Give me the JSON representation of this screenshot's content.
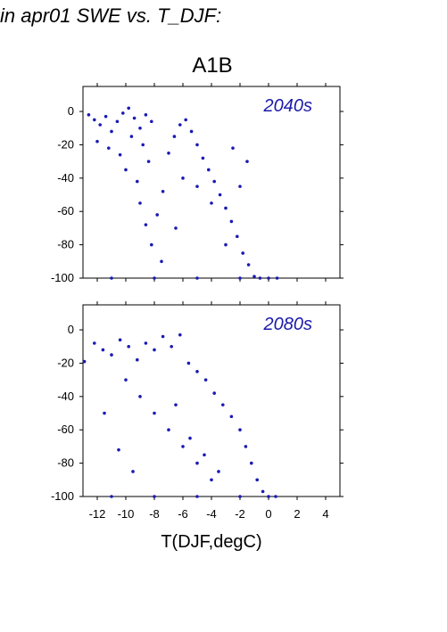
{
  "figure": {
    "header": "in apr01 SWE vs. T_DJF:",
    "scenario_title": "A1B",
    "point_color": "#1a1ab4",
    "label_color": "#1a1aaa"
  },
  "chart_data": [
    {
      "type": "scatter",
      "title": "A1B",
      "annotation": "2040s",
      "xlabel": "T(DJF,degC)",
      "ylabel": "",
      "xlim": [
        -13,
        5
      ],
      "ylim": [
        -100,
        15
      ],
      "xticks": [
        -12,
        -10,
        -8,
        -6,
        -4,
        -2,
        0,
        2,
        4
      ],
      "yticks": [
        0,
        -20,
        -40,
        -60,
        -80,
        -100
      ],
      "grid": false,
      "series": [
        {
          "points": [
            [
              -12.6,
              -2
            ],
            [
              -12.2,
              -5
            ],
            [
              -11.8,
              -8
            ],
            [
              -11.4,
              -3
            ],
            [
              -11.0,
              -12
            ],
            [
              -10.6,
              -6
            ],
            [
              -10.2,
              -1
            ],
            [
              -9.8,
              2
            ],
            [
              -9.4,
              -4
            ],
            [
              -9.0,
              -10
            ],
            [
              -8.6,
              -2
            ],
            [
              -8.2,
              -6
            ],
            [
              -12.0,
              -18
            ],
            [
              -11.2,
              -22
            ],
            [
              -10.4,
              -26
            ],
            [
              -9.6,
              -15
            ],
            [
              -8.8,
              -20
            ],
            [
              -10.0,
              -35
            ],
            [
              -9.2,
              -42
            ],
            [
              -8.4,
              -30
            ],
            [
              -9.0,
              -55
            ],
            [
              -8.6,
              -68
            ],
            [
              -8.2,
              -80
            ],
            [
              -7.8,
              -62
            ],
            [
              -7.4,
              -48
            ],
            [
              -7.0,
              -25
            ],
            [
              -6.6,
              -15
            ],
            [
              -6.2,
              -8
            ],
            [
              -5.8,
              -5
            ],
            [
              -5.4,
              -12
            ],
            [
              -5.0,
              -20
            ],
            [
              -4.6,
              -28
            ],
            [
              -4.2,
              -35
            ],
            [
              -3.8,
              -42
            ],
            [
              -3.4,
              -50
            ],
            [
              -3.0,
              -58
            ],
            [
              -2.6,
              -66
            ],
            [
              -2.2,
              -75
            ],
            [
              -1.8,
              -85
            ],
            [
              -1.4,
              -92
            ],
            [
              -1.0,
              -99
            ],
            [
              -0.6,
              -100
            ],
            [
              0.0,
              -100
            ],
            [
              0.6,
              -100
            ],
            [
              -11.0,
              -100
            ],
            [
              -8.0,
              -100
            ],
            [
              -5.0,
              -100
            ],
            [
              -2.0,
              -100
            ],
            [
              -6.0,
              -40
            ],
            [
              -5.0,
              -45
            ],
            [
              -4.0,
              -55
            ],
            [
              -6.5,
              -70
            ],
            [
              -7.5,
              -90
            ],
            [
              -3.0,
              -80
            ],
            [
              -2.0,
              -45
            ],
            [
              -1.5,
              -30
            ],
            [
              -2.5,
              -22
            ]
          ]
        }
      ]
    },
    {
      "type": "scatter",
      "annotation": "2080s",
      "xlabel": "T(DJF,degC)",
      "ylabel": "",
      "xlim": [
        -13,
        5
      ],
      "ylim": [
        -100,
        15
      ],
      "xticks": [
        -12,
        -10,
        -8,
        -6,
        -4,
        -2,
        0,
        2,
        4
      ],
      "yticks": [
        0,
        -20,
        -40,
        -60,
        -80,
        -100
      ],
      "grid": false,
      "series": [
        {
          "points": [
            [
              -12.9,
              -19
            ],
            [
              -12.2,
              -8
            ],
            [
              -11.6,
              -12
            ],
            [
              -11.0,
              -15
            ],
            [
              -10.4,
              -6
            ],
            [
              -9.8,
              -10
            ],
            [
              -9.2,
              -18
            ],
            [
              -8.6,
              -8
            ],
            [
              -8.0,
              -12
            ],
            [
              -7.4,
              -4
            ],
            [
              -6.8,
              -10
            ],
            [
              -6.2,
              -3
            ],
            [
              -5.6,
              -20
            ],
            [
              -5.0,
              -25
            ],
            [
              -4.4,
              -30
            ],
            [
              -3.8,
              -38
            ],
            [
              -3.2,
              -45
            ],
            [
              -2.6,
              -52
            ],
            [
              -2.0,
              -60
            ],
            [
              -1.6,
              -70
            ],
            [
              -1.2,
              -80
            ],
            [
              -0.8,
              -90
            ],
            [
              -0.4,
              -97
            ],
            [
              0.0,
              -100
            ],
            [
              0.5,
              -100
            ],
            [
              -11.0,
              -100
            ],
            [
              -8.0,
              -100
            ],
            [
              -5.0,
              -100
            ],
            [
              -2.0,
              -100
            ],
            [
              -10.0,
              -30
            ],
            [
              -9.0,
              -40
            ],
            [
              -8.0,
              -50
            ],
            [
              -7.0,
              -60
            ],
            [
              -6.0,
              -70
            ],
            [
              -5.0,
              -80
            ],
            [
              -4.0,
              -90
            ],
            [
              -11.5,
              -50
            ],
            [
              -10.5,
              -72
            ],
            [
              -9.5,
              -85
            ],
            [
              -6.5,
              -45
            ],
            [
              -5.5,
              -65
            ],
            [
              -4.5,
              -75
            ],
            [
              -3.5,
              -85
            ]
          ]
        }
      ]
    }
  ]
}
